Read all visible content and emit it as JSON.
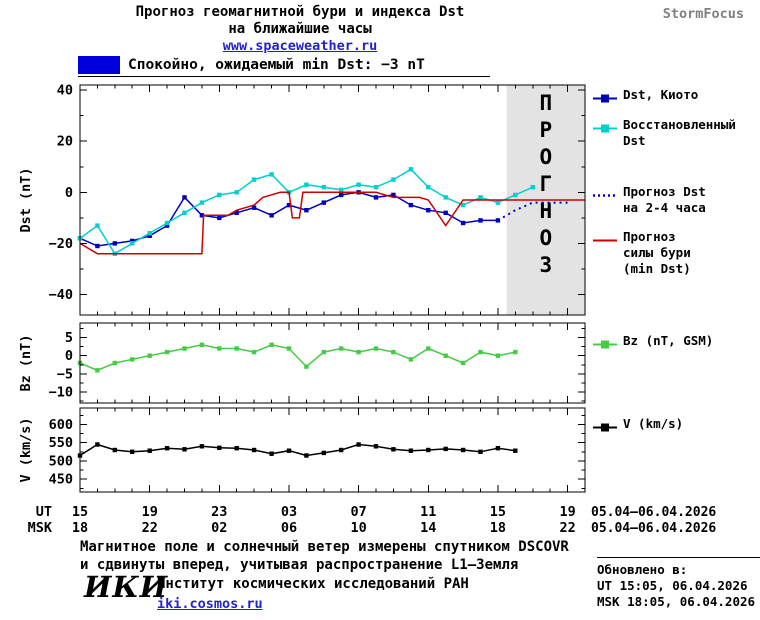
{
  "header": {
    "title_line1": "Прогноз геомагнитной бури и индекса Dst",
    "title_line2": "на ближайшие часы",
    "site_link": "www.spaceweather.ru",
    "brand": "StormFocus"
  },
  "status": {
    "swatch_color": "#0000dd",
    "text": "Спокойно, ожидаемый min Dst: −3 nT"
  },
  "legend": {
    "main": [
      {
        "lines": [
          "Dst, Киото"
        ],
        "color": "#0000bb"
      },
      {
        "lines": [
          "Восстановленный",
          "Dst"
        ],
        "color": "#00d0d0"
      },
      {
        "lines": [
          "Прогноз Dst",
          "на 2-4 часа"
        ],
        "color": "#0000bb"
      },
      {
        "lines": [
          "Прогноз",
          "силы бури",
          "(min Dst)"
        ],
        "color": "#cc0000"
      }
    ],
    "bz": {
      "lines": [
        "Bz (nT, GSM)"
      ],
      "color": "#44cc44"
    },
    "v": {
      "lines": [
        "V (km/s)"
      ],
      "color": "#000000"
    }
  },
  "chart_data": {
    "type": "line",
    "x_unit": "hours, starting 15:00 UT 05.04.2026",
    "x_range": [
      0,
      29
    ],
    "x_ticks": {
      "positions": [
        0,
        4,
        8,
        12,
        16,
        20,
        24,
        28
      ],
      "ut": [
        "15",
        "19",
        "23",
        "03",
        "07",
        "11",
        "15",
        "19"
      ],
      "msk": [
        "18",
        "22",
        "02",
        "06",
        "10",
        "14",
        "18",
        "22"
      ]
    },
    "axis_rows": {
      "ut_label": "UT",
      "msk_label": "MSK",
      "date": "05.04–06.04.2026"
    },
    "forecast_band": {
      "panel": 0,
      "start": 24.5,
      "end": 29,
      "color": "#e3e3e3",
      "watermark": "ПРОГНОЗ",
      "watermark_color": "#bbbbbb"
    },
    "panels": [
      {
        "name": "dst",
        "ylabel": "Dst (nT)",
        "y_range": [
          -48,
          42
        ],
        "y_ticks": [
          40,
          20,
          0,
          -20,
          -40
        ],
        "series": [
          {
            "name": "Dst, Киото",
            "color": "#0000bb",
            "marker": true,
            "x_start": 0,
            "values": [
              -18,
              -21,
              -20,
              -19,
              -17,
              -13,
              -2,
              -9,
              -10,
              -8,
              -6,
              -9,
              -5,
              -7,
              -4,
              -1,
              0,
              -2,
              -1,
              -5,
              -7,
              -8,
              -12,
              -11,
              -11
            ]
          },
          {
            "name": "Восстановленный Dst",
            "color": "#00d0d0",
            "marker": true,
            "x_start": 0,
            "values": [
              -18,
              -13,
              -24,
              -20,
              -16,
              -12,
              -8,
              -4,
              -1,
              0,
              5,
              7,
              0,
              3,
              2,
              1,
              3,
              2,
              5,
              9,
              2,
              -2,
              -5,
              -2,
              -4,
              -1,
              2
            ]
          },
          {
            "name": "Прогноз Dst на 2-4 часа",
            "color": "#0000bb",
            "dotted": true,
            "points": [
              [
                24,
                -11
              ],
              [
                25,
                -7
              ],
              [
                26,
                -4
              ],
              [
                28,
                -4
              ]
            ]
          },
          {
            "name": "Прогноз силы бури (min Dst)",
            "color": "#cc0000",
            "points": [
              [
                0,
                -20
              ],
              [
                1,
                -24
              ],
              [
                7,
                -24
              ],
              [
                7.1,
                -9
              ],
              [
                8.5,
                -9
              ],
              [
                9,
                -7
              ],
              [
                10,
                -5
              ],
              [
                10.5,
                -2
              ],
              [
                11.5,
                0
              ],
              [
                12,
                0
              ],
              [
                12.2,
                -10
              ],
              [
                12.6,
                -10
              ],
              [
                12.8,
                0
              ],
              [
                17,
                0
              ],
              [
                18,
                -2
              ],
              [
                19.5,
                -2
              ],
              [
                20,
                -3
              ],
              [
                21,
                -13
              ],
              [
                22,
                -3
              ],
              [
                29,
                -3
              ]
            ]
          }
        ]
      },
      {
        "name": "bz",
        "ylabel": "Bz (nT)",
        "y_range": [
          -13,
          9
        ],
        "y_ticks": [
          5,
          0,
          -5,
          -10
        ],
        "series": [
          {
            "name": "Bz (nT, GSM)",
            "color": "#44cc44",
            "marker": true,
            "x_start": 0,
            "values": [
              -2,
              -4,
              -2,
              -1,
              0,
              1,
              2,
              3,
              2,
              2,
              1,
              3,
              2,
              -3,
              1,
              2,
              1,
              2,
              1,
              -1,
              2,
              0,
              -2,
              1,
              0,
              1
            ]
          }
        ]
      },
      {
        "name": "v",
        "ylabel": "V (km/s)",
        "y_range": [
          415,
          645
        ],
        "y_ticks": [
          600,
          550,
          500,
          450
        ],
        "series": [
          {
            "name": "V (km/s)",
            "color": "#000000",
            "marker": true,
            "x_start": 0,
            "values": [
              515,
              545,
              530,
              525,
              528,
              535,
              532,
              540,
              536,
              535,
              530,
              520,
              528,
              515,
              522,
              530,
              545,
              540,
              532,
              528,
              530,
              533,
              530,
              525,
              535,
              528
            ]
          }
        ]
      }
    ]
  },
  "footnote": {
    "line1": "Магнитное поле и солнечный ветер измерены спутником DSCOVR",
    "line2": "и сдвинуты вперед, учитывая распространение L1–Земля"
  },
  "footer": {
    "logo": "ИКИ",
    "institute": "Институт космических исследований РАН",
    "site": "iki.cosmos.ru",
    "updated_label": "Обновлено в:",
    "updated_ut": "UT 15:05, 06.04.2026",
    "updated_msk": "MSK 18:05, 06.04.2026"
  }
}
